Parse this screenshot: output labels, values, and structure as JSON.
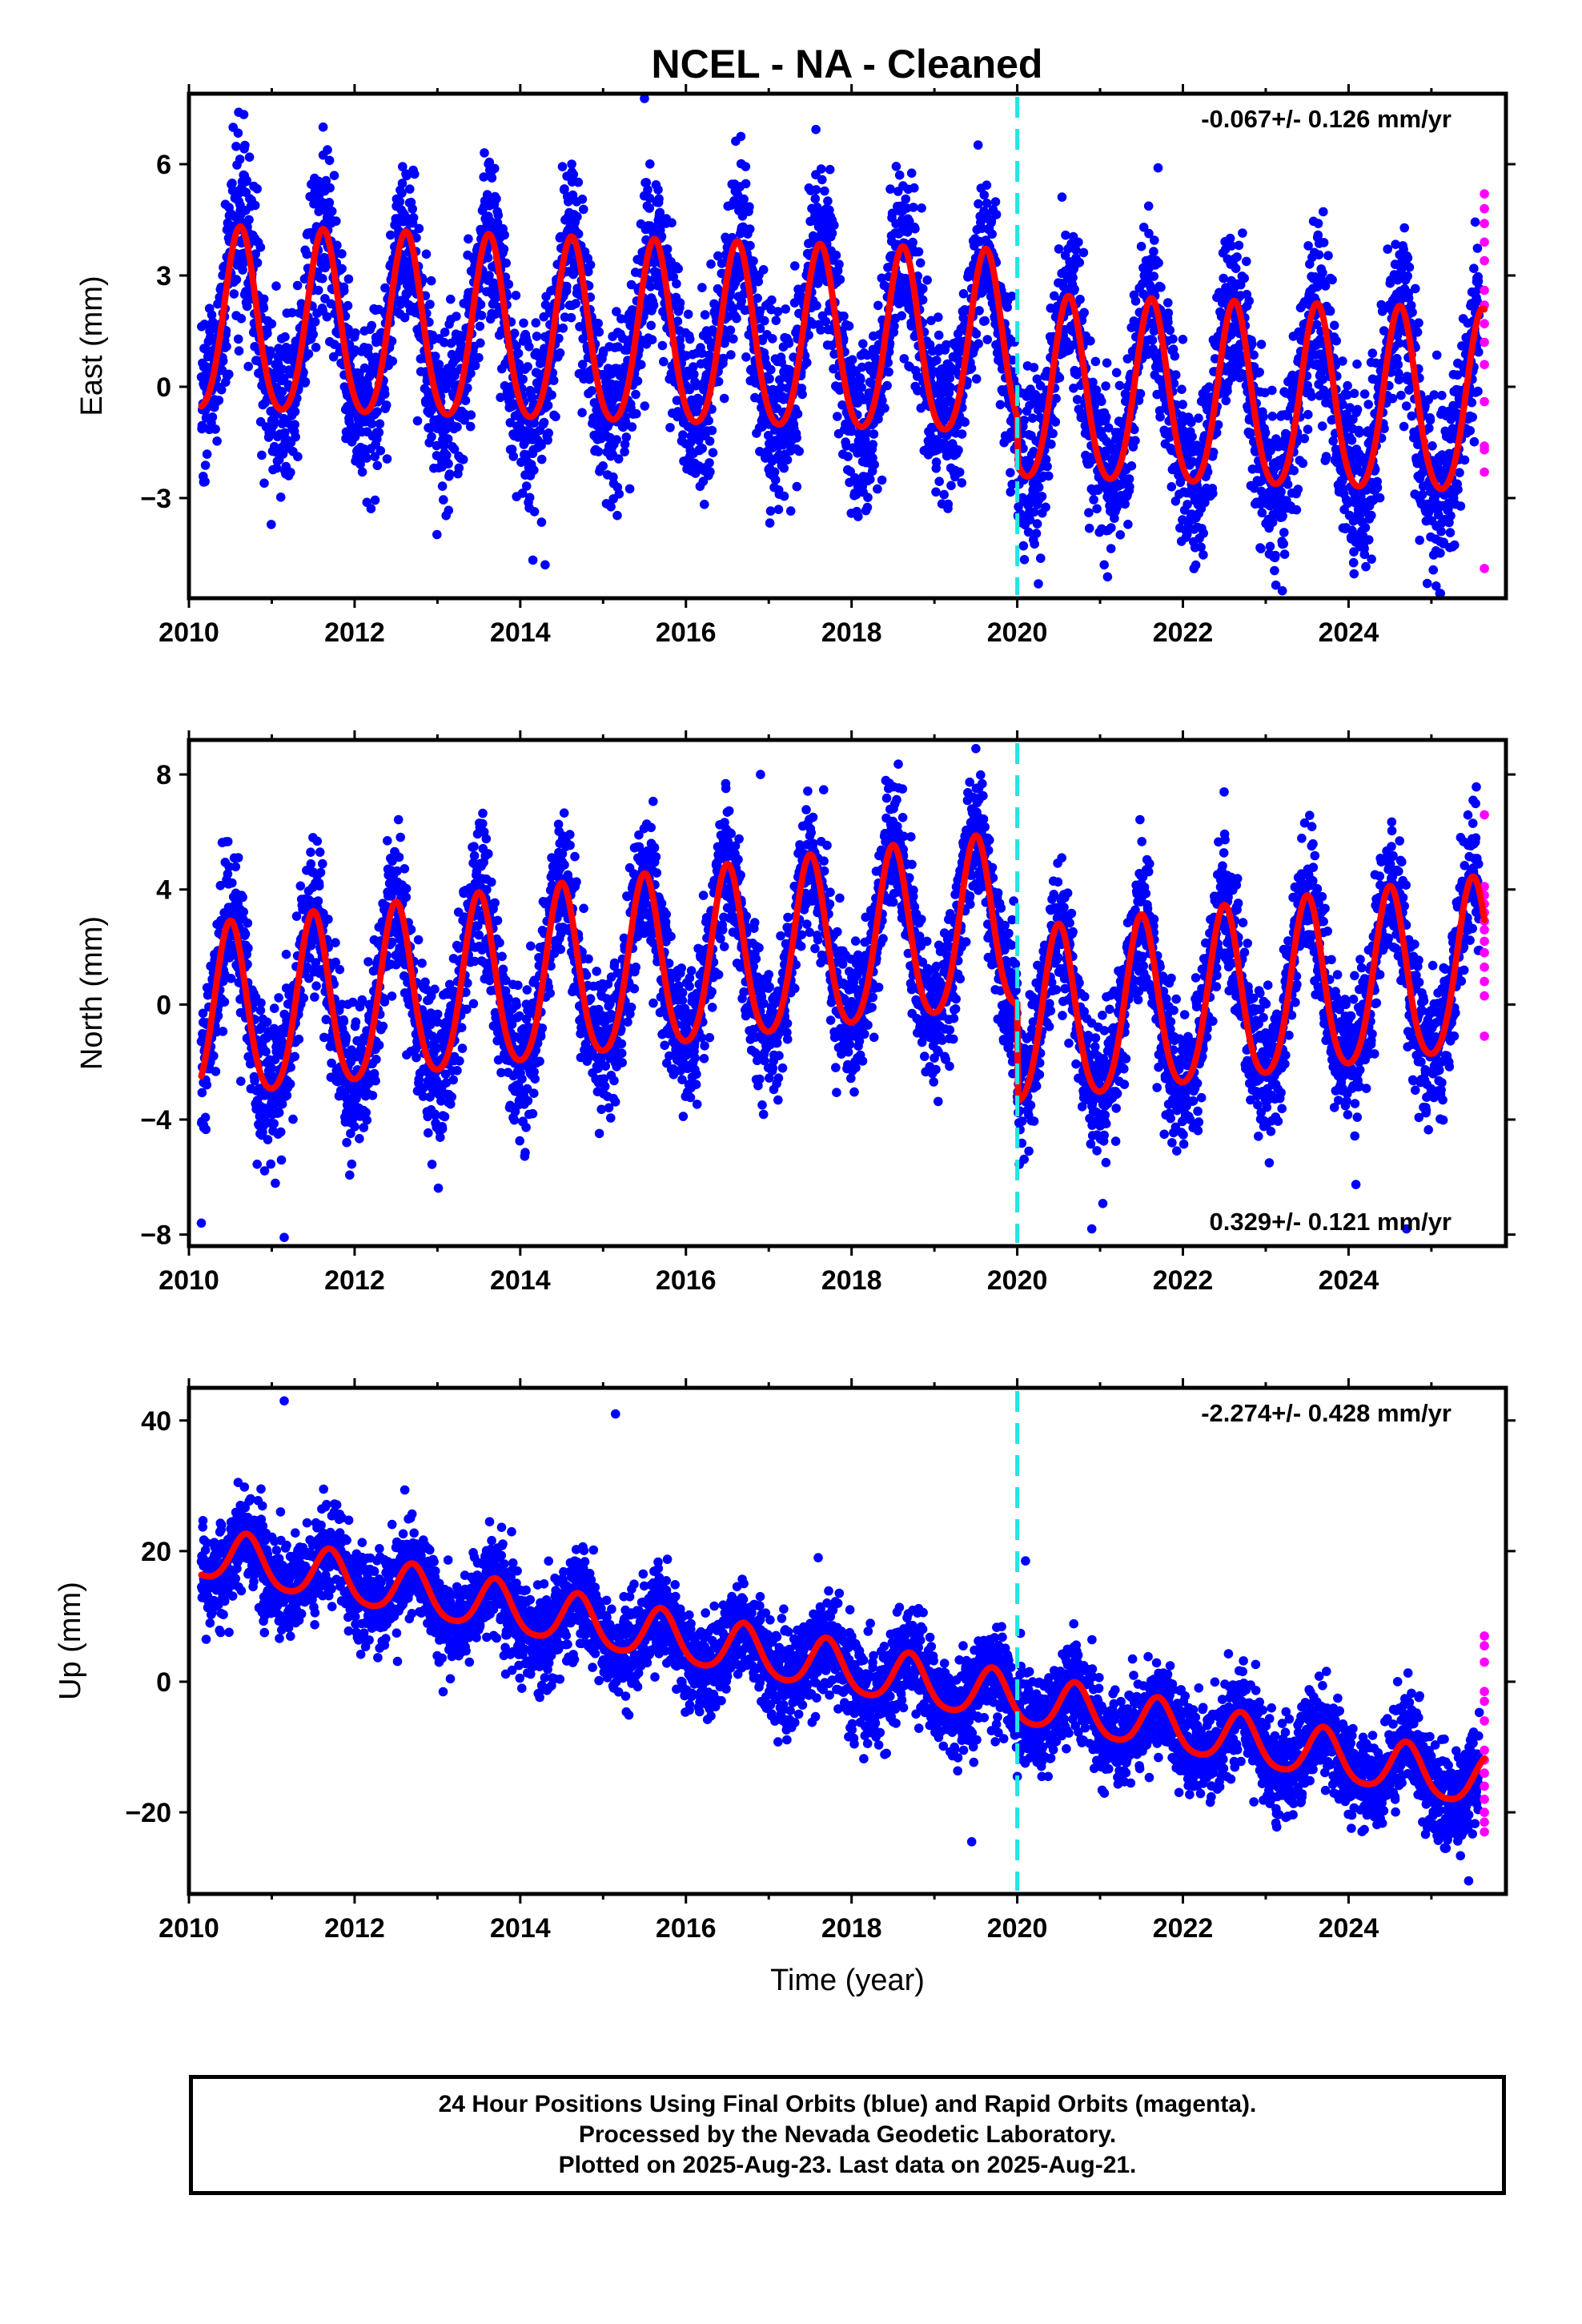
{
  "title": "NCEL  - NA - Cleaned",
  "colors": {
    "final_orbits": "#0000ff",
    "rapid_orbits": "#ff00ff",
    "model_fit": "#ff0000",
    "break_line": "#22e5e5",
    "frame": "#000000"
  },
  "chart_data": [
    {
      "type": "scatter",
      "component": "east",
      "ylabel": "East (mm)",
      "xlabel": "",
      "xlim": [
        2010.0,
        2025.9
      ],
      "ylim": [
        -5.7,
        7.9
      ],
      "x_ticks": [
        2010,
        2012,
        2014,
        2016,
        2018,
        2020,
        2022,
        2024
      ],
      "y_ticks": [
        -3,
        0,
        3,
        6
      ],
      "y_tick_labels": [
        "−3",
        "0",
        "3",
        "6"
      ],
      "rate_label": "-0.067+/- 0.126 mm/yr",
      "rate_label_position": "top-right",
      "break_epoch": 2020.0,
      "data_range": [
        2010.15,
        2025.64
      ],
      "model": {
        "offset": 1.6,
        "trend": -0.067,
        "t0": 2010.15,
        "annual_amp": 2.45,
        "annual_peak": 2010.62,
        "semiannual_amp": 0.3,
        "step_at_break": -1.2
      },
      "scatter_sd": 1.15,
      "rapid_points": [
        5.2,
        4.8,
        4.4,
        3.9,
        3.4,
        2.6,
        2.2,
        1.7,
        1.2,
        0.6,
        -0.4,
        -1.6,
        -1.7,
        -2.3,
        -4.9
      ],
      "outliers": [
        [
          2010.6,
          7.4
        ],
        [
          2011.62,
          7.0
        ],
        [
          2015.5,
          7.8
        ],
        [
          2014.3,
          -4.8
        ],
        [
          2023.2,
          -5.5
        ],
        [
          2024.95,
          -5.3
        ],
        [
          2021.7,
          5.9
        ]
      ]
    },
    {
      "type": "scatter",
      "component": "north",
      "ylabel": "North (mm)",
      "xlabel": "",
      "xlim": [
        2010.0,
        2025.9
      ],
      "ylim": [
        -8.4,
        9.2
      ],
      "x_ticks": [
        2010,
        2012,
        2014,
        2016,
        2018,
        2020,
        2022,
        2024
      ],
      "y_ticks": [
        -8,
        -4,
        0,
        4,
        8
      ],
      "y_tick_labels": [
        "−8",
        "−4",
        "0",
        "4",
        "8"
      ],
      "rate_label": "0.329+/- 0.121 mm/yr",
      "rate_label_position": "bottom-right",
      "break_epoch": 2020.0,
      "data_range": [
        2010.15,
        2025.64
      ],
      "model": {
        "offset": -0.6,
        "trend": 0.329,
        "t0": 2010.15,
        "annual_amp": 3.0,
        "annual_peak": 2010.5,
        "semiannual_amp": 0.4,
        "step_at_break": -3.4
      },
      "scatter_sd": 1.2,
      "rapid_points": [
        6.6,
        4.1,
        3.8,
        3.5,
        3.2,
        2.9,
        2.6,
        2.2,
        1.8,
        1.3,
        0.8,
        0.3,
        -1.1
      ],
      "outliers": [
        [
          2010.15,
          -7.6
        ],
        [
          2011.15,
          -8.1
        ],
        [
          2019.5,
          8.9
        ],
        [
          2020.9,
          -7.8
        ],
        [
          2024.7,
          -7.8
        ],
        [
          2016.9,
          8.0
        ]
      ]
    },
    {
      "type": "scatter",
      "component": "up",
      "ylabel": "Up (mm)",
      "xlabel": "Time (year)",
      "xlim": [
        2010.0,
        2025.9
      ],
      "ylim": [
        -32.5,
        45.0
      ],
      "x_ticks": [
        2010,
        2012,
        2014,
        2016,
        2018,
        2020,
        2022,
        2024
      ],
      "y_ticks": [
        -20,
        0,
        20,
        40
      ],
      "y_tick_labels": [
        "−20",
        "0",
        "20",
        "40"
      ],
      "rate_label": "-2.274+/- 0.428 mm/yr",
      "rate_label_position": "top-right",
      "break_epoch": 2020.0,
      "data_range": [
        2010.15,
        2025.64
      ],
      "model": {
        "offset": 19.5,
        "trend": -2.274,
        "t0": 2010.15,
        "annual_amp": 3.8,
        "annual_peak": 2010.7,
        "semiannual_amp": 0.6,
        "step_at_break": 0.0
      },
      "scatter_sd": 3.6,
      "rapid_points": [
        7.0,
        5.5,
        3.0,
        -1.5,
        -3.0,
        -6.0,
        -10.5,
        -12.0,
        -14.0,
        -16.0,
        -18.0,
        -20.0,
        -21.5,
        -23.0
      ],
      "outliers": [
        [
          2011.15,
          43.0
        ],
        [
          2015.15,
          41.0
        ],
        [
          2019.45,
          -24.5
        ],
        [
          2020.1,
          18.5
        ],
        [
          2025.45,
          -30.5
        ]
      ]
    }
  ],
  "footer": {
    "line1": "24 Hour Positions Using Final Orbits (blue) and Rapid Orbits (magenta).",
    "line2": "Processed by the Nevada Geodetic Laboratory.",
    "line3": "Plotted on 2025-Aug-23. Last data on 2025-Aug-21."
  }
}
